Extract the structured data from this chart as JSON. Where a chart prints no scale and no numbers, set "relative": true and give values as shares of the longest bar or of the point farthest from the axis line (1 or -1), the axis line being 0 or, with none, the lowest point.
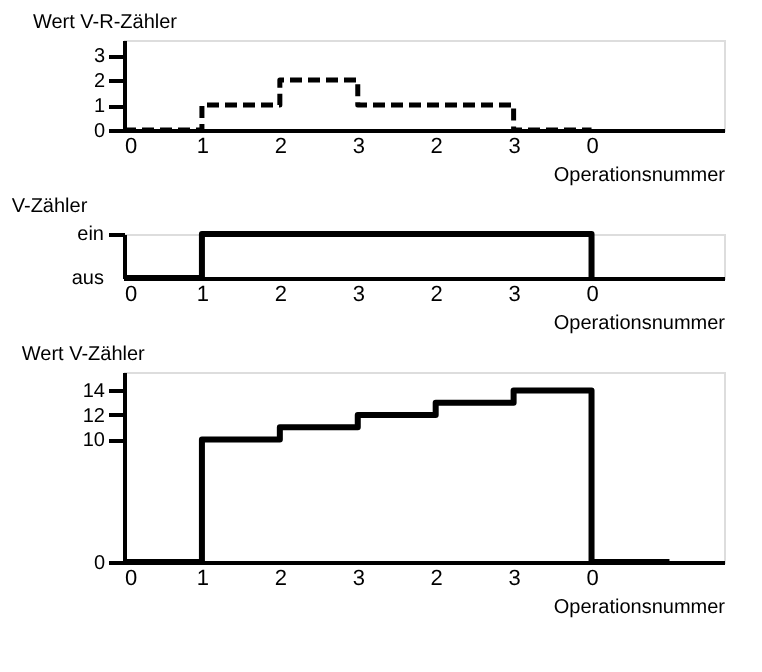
{
  "chart_data": [
    {
      "type": "step",
      "title": "Wert V-R-Zähler",
      "xlabel": "Operationsnummer",
      "categories": [
        "0",
        "1",
        "2",
        "3",
        "2",
        "3",
        "0",
        null
      ],
      "values": [
        0,
        1,
        2,
        1,
        1,
        0,
        0,
        null
      ],
      "color": "#000000",
      "line_style": "dashed",
      "ylim": [
        0,
        3.6
      ],
      "yticks": [
        0,
        1,
        2,
        3
      ],
      "grid": false,
      "marker": "none"
    },
    {
      "type": "step",
      "title": "V-Zähler",
      "xlabel": "Operationsnummer",
      "categories": [
        "0",
        "1",
        "2",
        "3",
        "2",
        "3",
        "0",
        null
      ],
      "values": [
        0,
        1,
        1,
        1,
        1,
        1,
        0,
        null
      ],
      "relative": true,
      "annotations": [
        "ein",
        "aus"
      ],
      "color": "#000000",
      "line_style": "solid",
      "grid": false,
      "marker": "none"
    },
    {
      "type": "step",
      "title": "Wert V-Zähler",
      "xlabel": "Operationsnummer",
      "categories": [
        "0",
        "1",
        "2",
        "3",
        "2",
        "3",
        "0",
        null
      ],
      "values": [
        0,
        10,
        11,
        12,
        13,
        14,
        0,
        0
      ],
      "color": "#000000",
      "line_style": "solid",
      "ylim": [
        0,
        15.5
      ],
      "yticks": [
        0,
        10,
        12,
        14
      ],
      "grid": false,
      "marker": "none"
    }
  ]
}
